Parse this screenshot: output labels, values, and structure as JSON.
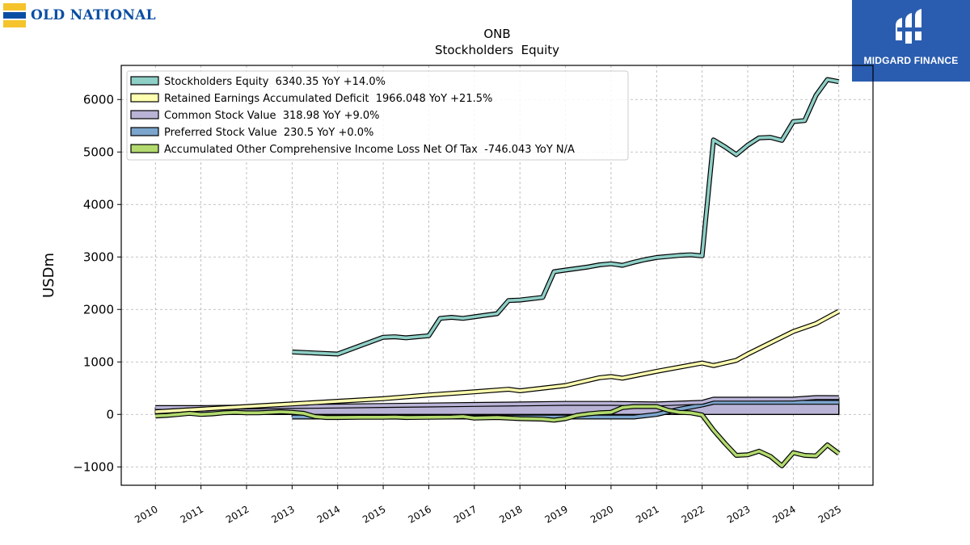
{
  "branding": {
    "left_logo_text": "OLD NATIONAL",
    "right_logo_text": "MIDGARD FINANCE"
  },
  "chart_data": {
    "type": "line",
    "title": "ONB",
    "subtitle": "Stockholders  Equity",
    "ylabel": "USDm",
    "xlabel": "",
    "ylim": [
      -1350,
      6650
    ],
    "xlim": [
      2009.25,
      2025.75
    ],
    "yticks": [
      -1000,
      0,
      1000,
      2000,
      3000,
      4000,
      5000,
      6000
    ],
    "ytick_labels": [
      "−1000",
      "0",
      "1000",
      "2000",
      "3000",
      "4000",
      "5000",
      "6000"
    ],
    "xticks": [
      2010,
      2011,
      2012,
      2013,
      2014,
      2015,
      2016,
      2017,
      2018,
      2019,
      2020,
      2021,
      2022,
      2023,
      2024,
      2025
    ],
    "xtick_labels": [
      "2010",
      "2011",
      "2012",
      "2013",
      "2014",
      "2015",
      "2016",
      "2017",
      "2018",
      "2019",
      "2020",
      "2021",
      "2022",
      "2023",
      "2024",
      "2025"
    ],
    "grid": true,
    "legend_position": "top-left",
    "series": [
      {
        "name": "Preferred Stock Value  230.5 YoY +0.0%",
        "color": "#7ba5cc",
        "fill": true,
        "x": [
          2013.0,
          2013.25,
          2013.75,
          2014.0,
          2015.0,
          2016.0,
          2017.0,
          2018.0,
          2019.0,
          2020.0,
          2020.5,
          2021.0,
          2021.5,
          2022.0,
          2022.25,
          2023.0,
          2024.0,
          2024.5,
          2025.0
        ],
        "values": [
          -50,
          -50,
          -50,
          -50,
          -50,
          -50,
          -50,
          -50,
          -50,
          -50,
          -50,
          0,
          100,
          180,
          230.5,
          230.5,
          230.5,
          230.5,
          230.5
        ]
      },
      {
        "name": "Common Stock Value  318.98 YoY +9.0%",
        "color": "#b9b3d6",
        "fill": true,
        "x": [
          2010.0,
          2011.0,
          2012.0,
          2013.0,
          2014.0,
          2015.0,
          2016.0,
          2017.0,
          2018.0,
          2019.0,
          2020.0,
          2021.0,
          2022.0,
          2022.25,
          2023.0,
          2024.0,
          2024.5,
          2025.0
        ],
        "values": [
          130,
          130,
          140,
          150,
          160,
          170,
          180,
          190,
          200,
          210,
          210,
          200,
          230,
          290,
          290,
          292,
          320,
          319
        ]
      },
      {
        "name": "Retained Earnings Accumulated Deficit  1966.048 YoY +21.5%",
        "color": "#ffffb0",
        "fill": false,
        "x": [
          2010.0,
          2011.0,
          2012.0,
          2013.0,
          2014.0,
          2015.0,
          2016.0,
          2017.0,
          2017.75,
          2018.0,
          2019.0,
          2019.75,
          2020.0,
          2020.25,
          2021.0,
          2022.0,
          2022.25,
          2022.75,
          2023.0,
          2024.0,
          2024.5,
          2025.0
        ],
        "values": [
          50,
          100,
          150,
          200,
          250,
          300,
          370,
          430,
          480,
          450,
          550,
          700,
          720,
          690,
          820,
          980,
          930,
          1030,
          1150,
          1580,
          1730,
          1966
        ]
      },
      {
        "name": "Accumulated Other Comprehensive Income Loss Net Of Tax  -746.043 YoY N/A",
        "color": "#b2da6e",
        "fill": false,
        "x": [
          2010.0,
          2010.25,
          2010.5,
          2010.75,
          2011.0,
          2011.25,
          2011.5,
          2011.75,
          2012.0,
          2012.25,
          2012.5,
          2012.75,
          2013.0,
          2013.25,
          2013.5,
          2013.75,
          2014.0,
          2014.5,
          2015.0,
          2015.25,
          2015.5,
          2016.0,
          2016.5,
          2016.75,
          2017.0,
          2017.5,
          2018.0,
          2018.5,
          2018.75,
          2019.0,
          2019.25,
          2019.5,
          2019.75,
          2020.0,
          2020.25,
          2020.5,
          2021.0,
          2021.25,
          2021.5,
          2021.75,
          2022.0,
          2022.25,
          2022.5,
          2022.75,
          2023.0,
          2023.25,
          2023.5,
          2023.75,
          2024.0,
          2024.25,
          2024.5,
          2024.75,
          2025.0
        ],
        "values": [
          -30,
          -20,
          0,
          20,
          0,
          10,
          30,
          40,
          30,
          30,
          40,
          50,
          40,
          20,
          -40,
          -60,
          -60,
          -55,
          -55,
          -50,
          -60,
          -55,
          -50,
          -40,
          -70,
          -60,
          -80,
          -90,
          -110,
          -80,
          -20,
          10,
          30,
          40,
          130,
          150,
          150,
          80,
          40,
          30,
          -10,
          -300,
          -550,
          -780,
          -770,
          -700,
          -800,
          -980,
          -730,
          -780,
          -790,
          -580,
          -746
        ]
      },
      {
        "name": "Stockholders Equity  6340.35 YoY +14.0%",
        "color": "#8ecfc6",
        "fill": false,
        "x": [
          2013.0,
          2013.5,
          2014.0,
          2014.5,
          2015.0,
          2015.25,
          2015.5,
          2016.0,
          2016.25,
          2016.5,
          2016.75,
          2017.0,
          2017.25,
          2017.5,
          2017.75,
          2018.0,
          2018.5,
          2018.75,
          2019.0,
          2019.5,
          2019.75,
          2020.0,
          2020.25,
          2020.5,
          2020.75,
          2021.0,
          2021.5,
          2021.75,
          2022.0,
          2022.25,
          2022.5,
          2022.75,
          2023.0,
          2023.25,
          2023.5,
          2023.75,
          2024.0,
          2024.25,
          2024.5,
          2024.75,
          2025.0
        ],
        "values": [
          1190,
          1170,
          1150,
          1310,
          1470,
          1480,
          1460,
          1500,
          1830,
          1850,
          1830,
          1860,
          1890,
          1920,
          2170,
          2180,
          2230,
          2720,
          2750,
          2810,
          2850,
          2870,
          2840,
          2900,
          2950,
          2990,
          3030,
          3040,
          3020,
          5230,
          5100,
          4950,
          5130,
          5270,
          5280,
          5220,
          5580,
          5600,
          6080,
          6380,
          6340
        ]
      }
    ],
    "legend": [
      {
        "label": "Stockholders Equity  6340.35 YoY +14.0%",
        "color": "#8ecfc6"
      },
      {
        "label": "Retained Earnings Accumulated Deficit  1966.048 YoY +21.5%",
        "color": "#ffffb0"
      },
      {
        "label": "Common Stock Value  318.98 YoY +9.0%",
        "color": "#b9b3d6"
      },
      {
        "label": "Preferred Stock Value  230.5 YoY +0.0%",
        "color": "#7ba5cc"
      },
      {
        "label": "Accumulated Other Comprehensive Income Loss Net Of Tax  -746.043 YoY N/A",
        "color": "#b2da6e"
      }
    ]
  }
}
